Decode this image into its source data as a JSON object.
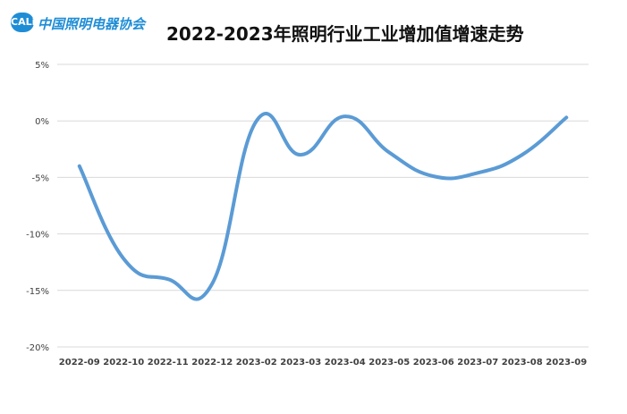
{
  "logo": {
    "badge": "CALi",
    "text": "中国照明电器协会"
  },
  "chart_data": {
    "type": "line",
    "title": "2022-2023年照明行业工业增加值增速走势",
    "xlabel": "",
    "ylabel": "",
    "categories": [
      "2022-09",
      "2022-10",
      "2022-11",
      "2022-12",
      "2023-02",
      "2023-03",
      "2023-04",
      "2023-05",
      "2023-06",
      "2023-07",
      "2023-08",
      "2023-09"
    ],
    "series": [
      {
        "values": [
          -4.0,
          -12.2,
          -14.0,
          -14.4,
          0.0,
          -3.0,
          0.4,
          -2.8,
          -4.9,
          -4.6,
          -3.0,
          0.3
        ]
      }
    ],
    "y_ticks": [
      5,
      0,
      -5,
      -10,
      -15,
      -20
    ],
    "y_tick_labels": [
      "5%",
      "0%",
      "-5%",
      "-10%",
      "-15%",
      "-20%"
    ],
    "ylim": [
      -20,
      5
    ],
    "grid": true,
    "line_color": "#5b9bd5",
    "grid_color": "#d9d9d9"
  }
}
